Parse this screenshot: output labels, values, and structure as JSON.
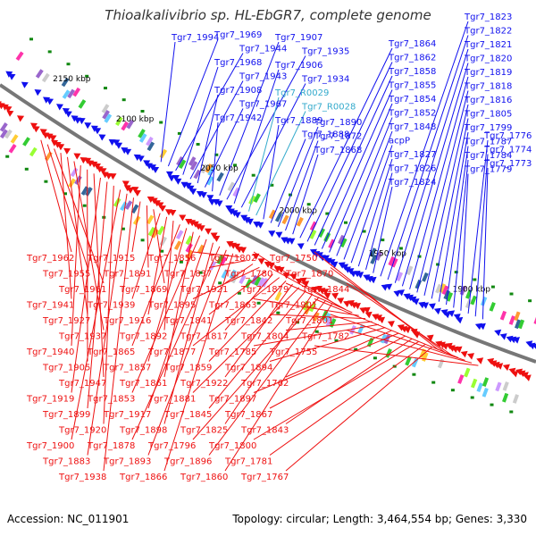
{
  "title": "Thioalkalivibrio sp. HL-EbGR7, complete genome",
  "footer": {
    "accession": "Accession: NC_011901",
    "summary": "Topology: circular; Length: 3,464,554 bp; Genes: 3,330"
  },
  "colors": {
    "forward": "#1010ee",
    "reverse": "#ee1010",
    "rna": "#33aacc",
    "backbone": "#777777",
    "tick": "#118811"
  },
  "kbp_labels": [
    "2150 kbp",
    "2100 kbp",
    "2050 kbp",
    "2000 kbp",
    "1950 kbp",
    "1900 kbp"
  ],
  "top_labels": [
    {
      "text": "Tgr7_1994",
      "kind": "forward"
    },
    {
      "text": "Tgr7_1969",
      "kind": "forward"
    },
    {
      "text": "Tgr7_1944",
      "kind": "forward"
    },
    {
      "text": "Tgr7_1968",
      "kind": "forward"
    },
    {
      "text": "Tgr7_1943",
      "kind": "forward"
    },
    {
      "text": "Tgr7_1908",
      "kind": "forward"
    },
    {
      "text": "Tgr7_1967",
      "kind": "forward"
    },
    {
      "text": "Tgr7_1942",
      "kind": "forward"
    },
    {
      "text": "Tgr7_1907",
      "kind": "forward"
    },
    {
      "text": "Tgr7_1935",
      "kind": "forward"
    },
    {
      "text": "Tgr7_1906",
      "kind": "forward"
    },
    {
      "text": "Tgr7_1934",
      "kind": "forward"
    },
    {
      "text": "Tgr7_R0029",
      "kind": "rna"
    },
    {
      "text": "Tgr7_R0028",
      "kind": "rna"
    },
    {
      "text": "Tgr7_1889",
      "kind": "forward"
    },
    {
      "text": "Tgr7_1888",
      "kind": "forward"
    },
    {
      "text": "Tgr7_1890",
      "kind": "forward"
    },
    {
      "text": "Tgr7_1872",
      "kind": "forward"
    },
    {
      "text": "Tgr7_1868",
      "kind": "forward"
    },
    {
      "text": "Tgr7_1864",
      "kind": "forward"
    },
    {
      "text": "Tgr7_1862",
      "kind": "forward"
    },
    {
      "text": "Tgr7_1858",
      "kind": "forward"
    },
    {
      "text": "Tgr7_1855",
      "kind": "forward"
    },
    {
      "text": "Tgr7_1854",
      "kind": "forward"
    },
    {
      "text": "Tgr7_1852",
      "kind": "forward"
    },
    {
      "text": "Tgr7_1848",
      "kind": "forward"
    },
    {
      "text": "acpP",
      "kind": "forward"
    },
    {
      "text": "Tgr7_1827",
      "kind": "forward"
    },
    {
      "text": "Tgr7_1826",
      "kind": "forward"
    },
    {
      "text": "Tgr7_1824",
      "kind": "forward"
    },
    {
      "text": "Tgr7_1823",
      "kind": "forward"
    },
    {
      "text": "Tgr7_1822",
      "kind": "forward"
    },
    {
      "text": "Tgr7_1821",
      "kind": "forward"
    },
    {
      "text": "Tgr7_1820",
      "kind": "forward"
    },
    {
      "text": "Tgr7_1819",
      "kind": "forward"
    },
    {
      "text": "Tgr7_1818",
      "kind": "forward"
    },
    {
      "text": "Tgr7_1816",
      "kind": "forward"
    },
    {
      "text": "Tgr7_1805",
      "kind": "forward"
    },
    {
      "text": "Tgr7_1799",
      "kind": "forward"
    },
    {
      "text": "Tgr7_1787",
      "kind": "forward"
    },
    {
      "text": "Tgr7_1784",
      "kind": "forward"
    },
    {
      "text": "Tgr7_1779",
      "kind": "forward"
    },
    {
      "text": "Tgr7_1776",
      "kind": "forward"
    },
    {
      "text": "Tgr7_1774",
      "kind": "forward"
    },
    {
      "text": "Tgr7_1773",
      "kind": "forward"
    }
  ],
  "bottom_labels": [
    "Tgr7_1962",
    "Tgr7_1955",
    "Tgr7_1961",
    "Tgr7_1941",
    "Tgr7_1927",
    "Tgr7_1937",
    "Tgr7_1940",
    "Tgr7_1905",
    "Tgr7_1947",
    "Tgr7_1919",
    "Tgr7_1899",
    "Tgr7_1920",
    "Tgr7_1900",
    "Tgr7_1883",
    "Tgr7_1938",
    "Tgr7_1915",
    "Tgr7_1891",
    "Tgr7_1869",
    "Tgr7_1939",
    "Tgr7_1916",
    "Tgr7_1892",
    "Tgr7_1865",
    "Tgr7_1857",
    "Tgr7_1861",
    "Tgr7_1853",
    "Tgr7_1917",
    "Tgr7_1898",
    "Tgr7_1878",
    "Tgr7_1893",
    "Tgr7_1866",
    "Tgr7_1856",
    "Tgr7_1837",
    "Tgr7_1921",
    "Tgr7_1895",
    "Tgr7_1841",
    "Tgr7_1817",
    "Tgr7_1877",
    "Tgr7_1859",
    "Tgr7_1922",
    "Tgr7_1881",
    "Tgr7_1845",
    "Tgr7_1825",
    "Tgr7_1796",
    "Tgr7_1896",
    "Tgr7_1860",
    "Tgr7_1802",
    "Tgr7_1780",
    "Tgr7_1879",
    "Tgr7_1863",
    "Tgr7_1842",
    "Tgr7_1804",
    "Tgr7_1785",
    "Tgr7_1894",
    "Tgr7_1762",
    "Tgr7_1897",
    "Tgr7_1867",
    "Tgr7_1843",
    "Tgr7_1800",
    "Tgr7_1781",
    "Tgr7_1767",
    "Tgr7_1750",
    "Tgr7_1870",
    "Tgr7_1844",
    "Tgr7_1901",
    "Tgr7_1801",
    "Tgr7_1782",
    "Tgr7_1755"
  ]
}
